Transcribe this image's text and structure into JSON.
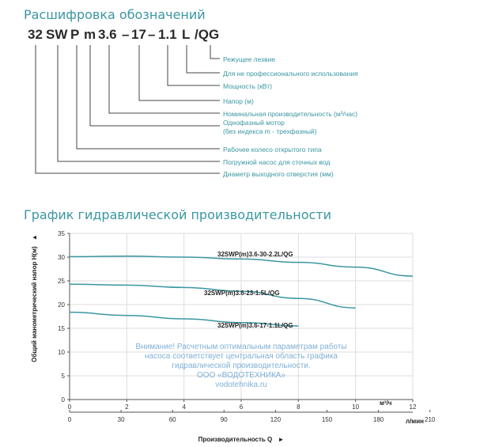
{
  "legend": {
    "title": "Расшифровка обозначений",
    "code_parts": [
      "32",
      "SW",
      "P",
      "m",
      "3.6",
      "–",
      "17",
      "–",
      "1.1",
      "L",
      "/QG"
    ],
    "explanations": [
      "Режущее лезвие",
      "Для не профессионального использования",
      "Мощность (кВт)",
      "Напор (м)",
      "Номинальная производительность (м³/час)",
      "Однофазный мотор",
      "(без индекса m - трехфазный)",
      "Рабочее колесо открытого типа",
      "Погружной насос для сточных вод",
      "Диаметр выходного отверстия (мм)"
    ]
  },
  "chart": {
    "title": "График гидравлической производительности",
    "warning_lines": [
      "Внимание! Расчетным оптимальным параметрам работы",
      "насоса соответствует центральная область графика",
      "гидравлической производительности.",
      "ООО «ВОДОТЕХНИКА»",
      "vodotehnika.ru"
    ],
    "colors": {
      "curve": "#3a96a2",
      "grid": "#dddddd",
      "axis": "#555555",
      "accent": "#3a96a2"
    }
  },
  "chart_data": {
    "type": "line",
    "title": "График гидравлической производительности",
    "xlabel": "Производительность Q",
    "ylabel": "Общий манометрический напор H(м)",
    "x_unit": "м³/ч",
    "x2_unit": "л/мин",
    "xlim": [
      0,
      12
    ],
    "ylim": [
      0,
      35
    ],
    "x_ticks": [
      0,
      2,
      4,
      6,
      8,
      10,
      12
    ],
    "x2_ticks": [
      0,
      30,
      60,
      90,
      120,
      150,
      180,
      210
    ],
    "y_ticks": [
      0,
      5,
      10,
      15,
      20,
      25,
      30,
      35
    ],
    "grid": true,
    "series": [
      {
        "name": "32SWP(m)3.6-30-2.2L/QG",
        "x": [
          0,
          2,
          4,
          6,
          8,
          10,
          12
        ],
        "y": [
          30.1,
          30.2,
          30.0,
          29.6,
          28.9,
          27.9,
          26.0
        ]
      },
      {
        "name": "32SWP(m)3.6-23-1.5L/QG",
        "x": [
          0,
          2,
          4,
          6,
          8,
          10
        ],
        "y": [
          24.3,
          24.1,
          23.6,
          22.8,
          21.3,
          19.3
        ]
      },
      {
        "name": "32SWP(m)3.6-17-1.1L/QG",
        "x": [
          0,
          2,
          4,
          6,
          8
        ],
        "y": [
          18.4,
          17.7,
          17.0,
          16.2,
          15.5
        ]
      }
    ]
  }
}
